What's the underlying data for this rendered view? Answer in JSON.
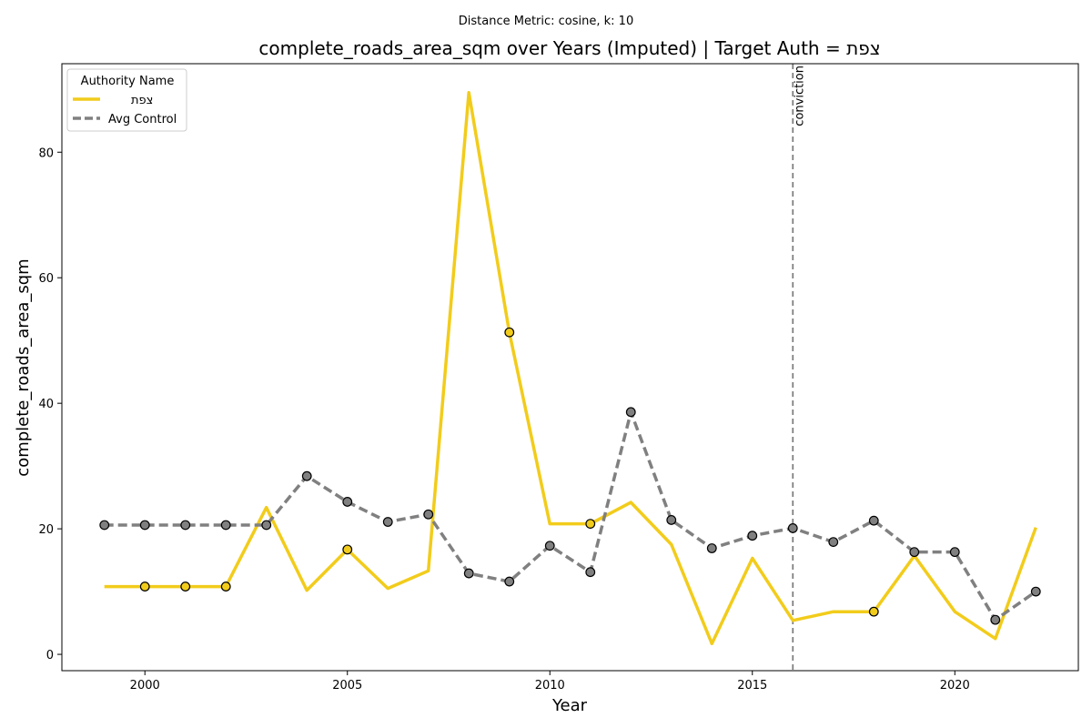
{
  "chart_data": {
    "type": "line",
    "suptitle": "Distance Metric: cosine, k: 10",
    "title": "complete_roads_area_sqm over Years (Imputed) | Target Auth = צפת",
    "xlabel": "Year",
    "ylabel": "complete_roads_area_sqm",
    "xlim": [
      1997.95,
      2023.05
    ],
    "ylim": [
      -2.6,
      94.1
    ],
    "xticks": [
      2000,
      2005,
      2010,
      2015,
      2020
    ],
    "yticks": [
      0,
      20,
      40,
      60,
      80
    ],
    "grid": false,
    "legend": {
      "title": "Authority Name",
      "placement": "top-left"
    },
    "x": [
      1999,
      2000,
      2001,
      2002,
      2003,
      2004,
      2005,
      2006,
      2007,
      2008,
      2009,
      2010,
      2011,
      2012,
      2013,
      2014,
      2015,
      2016,
      2017,
      2018,
      2019,
      2020,
      2021,
      2022
    ],
    "series": [
      {
        "name": "צפת",
        "color": "#f2cc1b",
        "style": "solid",
        "values": [
          10.8,
          10.8,
          10.8,
          10.8,
          23.4,
          10.2,
          16.7,
          10.5,
          13.3,
          89.5,
          51.3,
          20.8,
          20.8,
          24.2,
          17.5,
          1.7,
          15.3,
          5.4,
          6.8,
          6.8,
          15.7,
          6.8,
          2.5,
          20.2
        ],
        "markers_at": [
          2000,
          2001,
          2002,
          2005,
          2009,
          2011,
          2018
        ]
      },
      {
        "name": "Avg Control",
        "color": "#808080",
        "style": "dashed",
        "values": [
          20.6,
          20.6,
          20.6,
          20.6,
          20.6,
          28.4,
          24.3,
          21.1,
          22.3,
          12.9,
          11.6,
          17.3,
          13.1,
          38.6,
          21.4,
          16.9,
          18.9,
          20.1,
          17.9,
          21.3,
          16.3,
          16.3,
          5.5,
          10.0
        ],
        "markers_at": [
          1999,
          2000,
          2001,
          2002,
          2003,
          2004,
          2005,
          2006,
          2007,
          2008,
          2009,
          2010,
          2011,
          2012,
          2013,
          2014,
          2015,
          2016,
          2017,
          2018,
          2019,
          2020,
          2021,
          2022
        ]
      }
    ],
    "annotations": [
      {
        "type": "vline",
        "x": 2016,
        "label": "conviction",
        "color": "#808080"
      }
    ]
  }
}
